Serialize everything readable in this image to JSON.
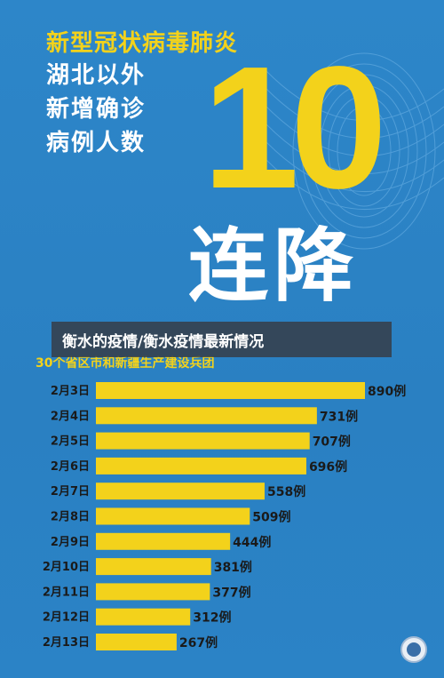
{
  "poster": {
    "title": "新型冠状病毒肺炎",
    "lines": [
      "湖北以外",
      "新增确诊",
      "病例人数"
    ],
    "big_number": "10",
    "big_label": "连降",
    "overlay_caption": "衡水的疫情/衡水疫情最新情况",
    "chart_subtitle": "30个省区市和新疆生产建设兵团"
  },
  "colors": {
    "background": "#2b83c6",
    "accent_yellow": "#f3d21b",
    "bar_yellow": "#f3d21b",
    "label_dark": "#1a1a1a"
  },
  "chart_data": {
    "type": "bar",
    "orientation": "horizontal",
    "categories": [
      "2月3日",
      "2月4日",
      "2月5日",
      "2月6日",
      "2月7日",
      "2月8日",
      "2月9日",
      "2月10日",
      "2月11日",
      "2月12日",
      "2月13日"
    ],
    "values": [
      890,
      731,
      707,
      696,
      558,
      509,
      444,
      381,
      377,
      312,
      267
    ],
    "value_labels": [
      "890例",
      "731例",
      "707例",
      "696例",
      "558例",
      "509例",
      "444例",
      "381例",
      "377例",
      "312例",
      "267例"
    ],
    "xlim": [
      0,
      890
    ],
    "grid": false,
    "legend": "none"
  }
}
